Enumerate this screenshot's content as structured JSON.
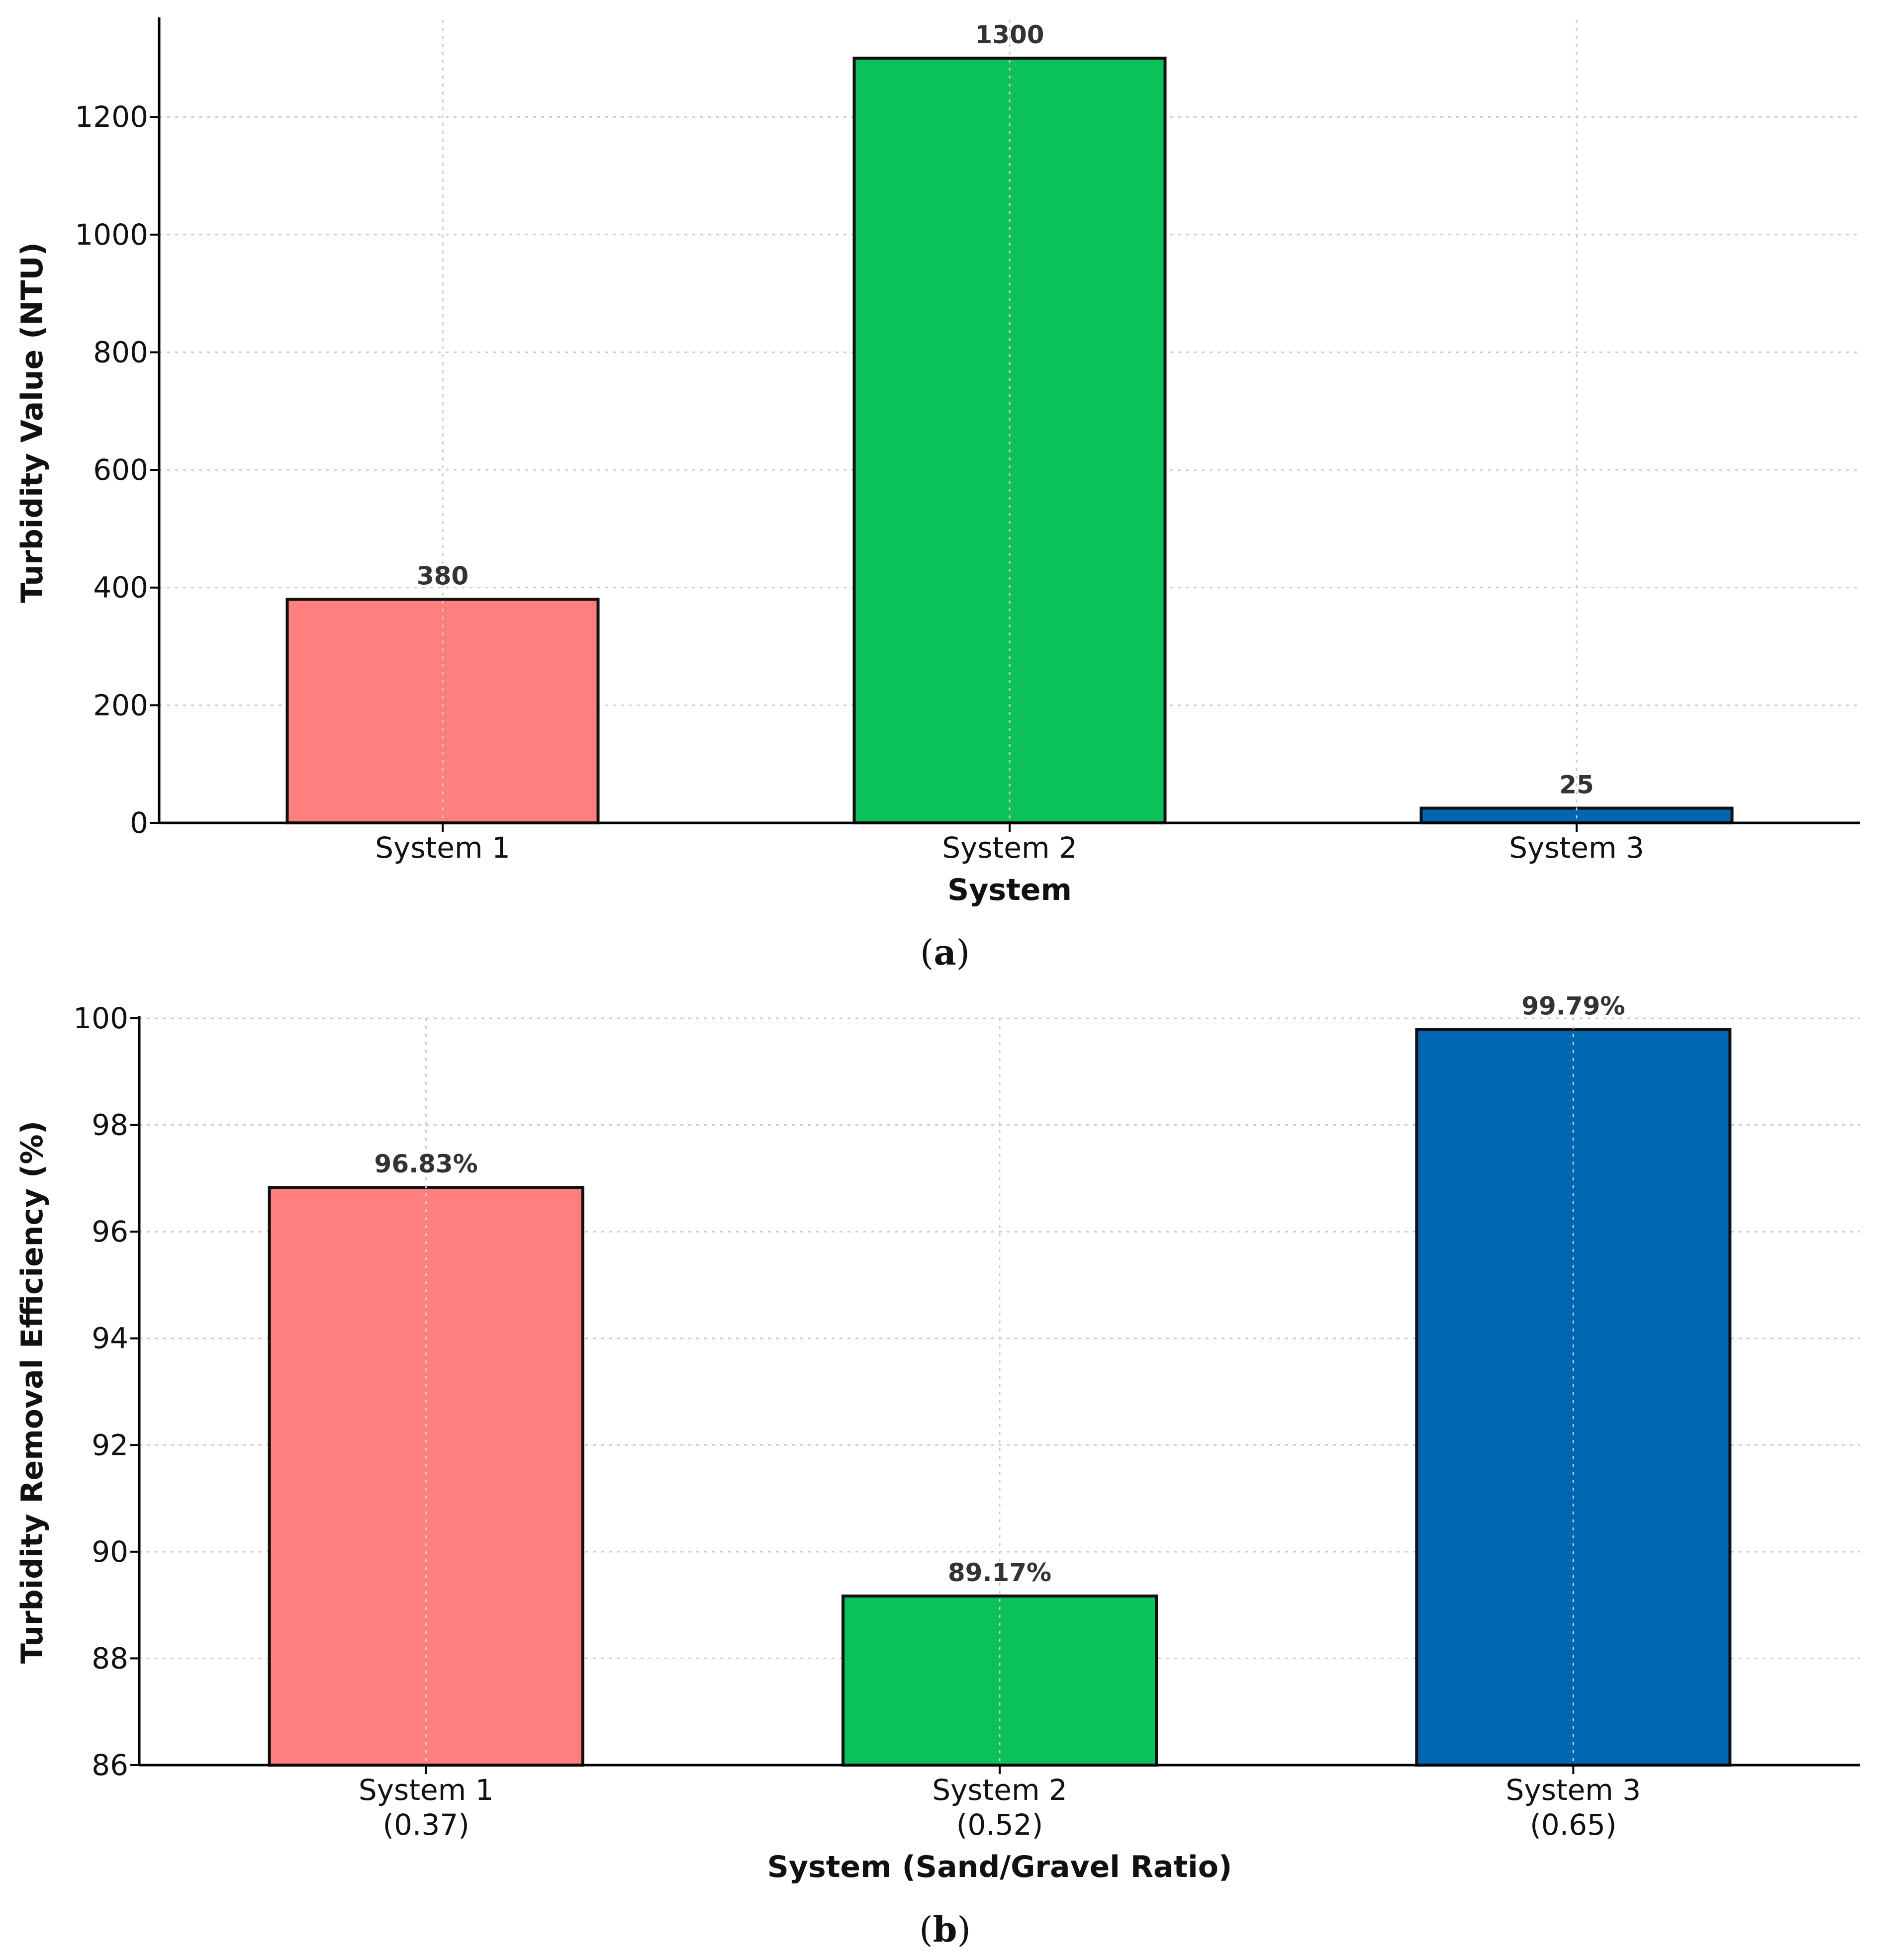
{
  "chart_data": [
    {
      "type": "bar",
      "panel_label": "a",
      "categories": [
        "System 1",
        "System 2",
        "System 3"
      ],
      "values": [
        380,
        1300,
        25
      ],
      "data_labels": [
        "380",
        "1300",
        "25"
      ],
      "colors": [
        "#ff7f7f",
        "#0bc15a",
        "#0066b2"
      ],
      "title": "",
      "xlabel": "System",
      "ylabel": "Turbidity Value (NTU)",
      "ylim": [
        0,
        1365
      ],
      "yticks": [
        0,
        200,
        400,
        600,
        800,
        1000,
        1200
      ],
      "grid": true
    },
    {
      "type": "bar",
      "panel_label": "b",
      "categories": [
        [
          "System 1",
          "(0.37)"
        ],
        [
          "System 2",
          "(0.52)"
        ],
        [
          "System 3",
          "(0.65)"
        ]
      ],
      "values": [
        96.83,
        89.17,
        99.79
      ],
      "data_labels": [
        "96.83%",
        "89.17%",
        "99.79%"
      ],
      "colors": [
        "#ff7f7f",
        "#0bc15a",
        "#0066b2"
      ],
      "title": "",
      "xlabel": "System (Sand/Gravel Ratio)",
      "ylabel": "Turbidity Removal Efficiency (%)",
      "ylim": [
        86,
        100
      ],
      "yticks": [
        86,
        88,
        90,
        92,
        94,
        96,
        98,
        100
      ],
      "grid": true
    }
  ]
}
